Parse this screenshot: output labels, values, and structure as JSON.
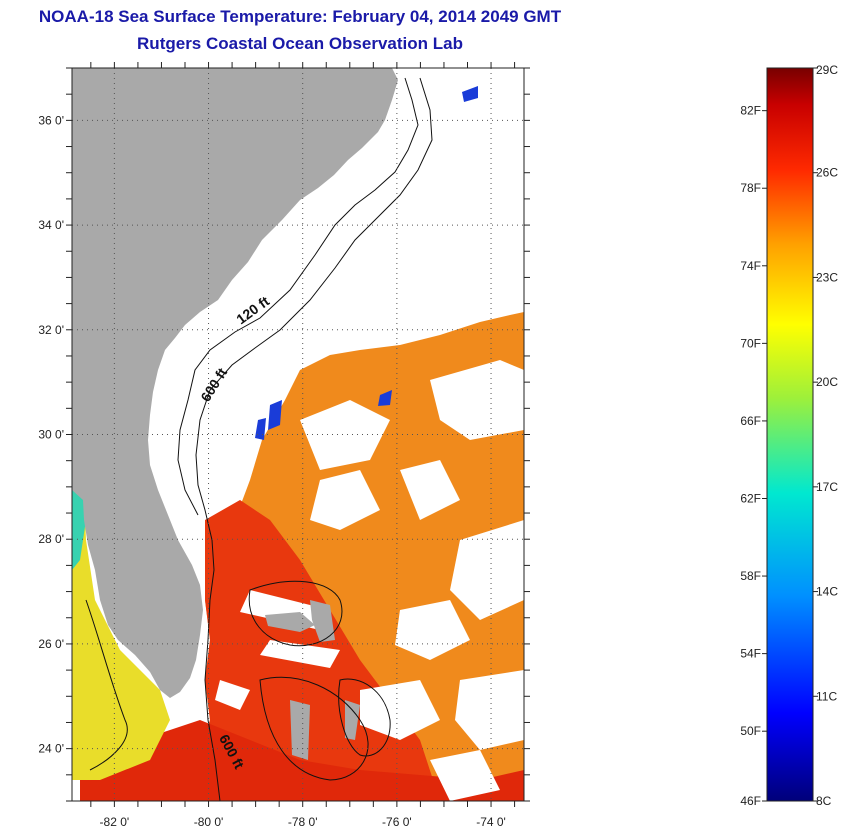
{
  "header": {
    "title": "NOAA-18 Sea Surface Temperature:  February 04, 2014 2049 GMT",
    "subtitle": "Rutgers Coastal Ocean Observation Lab"
  },
  "map": {
    "lat_ticks": [
      {
        "value": 36,
        "label": "36 0'"
      },
      {
        "value": 34,
        "label": "34 0'"
      },
      {
        "value": 32,
        "label": "32 0'"
      },
      {
        "value": 30,
        "label": "30 0'"
      },
      {
        "value": 28,
        "label": "28 0'"
      },
      {
        "value": 26,
        "label": "26 0'"
      },
      {
        "value": 24,
        "label": "24 0'"
      }
    ],
    "lon_ticks": [
      {
        "value": -82,
        "label": "-82 0'"
      },
      {
        "value": -80,
        "label": "-80 0'"
      },
      {
        "value": -78,
        "label": "-78 0'"
      },
      {
        "value": -76,
        "label": "-76 0'"
      },
      {
        "value": -74,
        "label": "-74 0'"
      }
    ],
    "lon_range": [
      -82.9,
      -73.3
    ],
    "lat_range": [
      23.0,
      37.0
    ],
    "isobath_labels": [
      {
        "text": "120 ft",
        "lon": -79.0,
        "lat": 32.3
      },
      {
        "text": "600 ft",
        "lon": -79.8,
        "lat": 30.9
      },
      {
        "text": "600 ft",
        "lon": -79.6,
        "lat": 23.9
      }
    ],
    "colors": {
      "land": "#a9a9a9",
      "cloud": "#ffffff",
      "isobath": "#111111",
      "grid": "#555555"
    }
  },
  "colorbar": {
    "celsius_range": [
      8,
      29
    ],
    "fahrenheit_labels": [
      "82F",
      "78F",
      "74F",
      "70F",
      "66F",
      "62F",
      "58F",
      "54F",
      "50F",
      "46F"
    ],
    "celsius_labels": [
      "29C",
      "26C",
      "23C",
      "20C",
      "17C",
      "14C",
      "11C",
      "8C"
    ],
    "fahrenheit_values": [
      82,
      78,
      74,
      70,
      66,
      62,
      58,
      54,
      50,
      46
    ],
    "celsius_values": [
      29,
      26,
      23,
      20,
      17,
      14,
      11,
      8
    ]
  }
}
